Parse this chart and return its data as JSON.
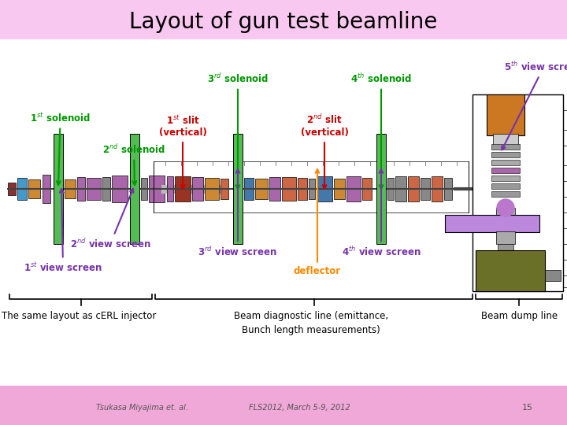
{
  "title": "Layout of gun test beamline",
  "title_fontsize": 20,
  "bg_color": "#f9c8f0",
  "slide_bg": "#ffffff",
  "footer_text1": "Tsukasa Miyajima et. al.",
  "footer_text2": "FLS2012, March 5-9, 2012",
  "footer_text3": "15",
  "footer_bg": "#f0a8d8"
}
